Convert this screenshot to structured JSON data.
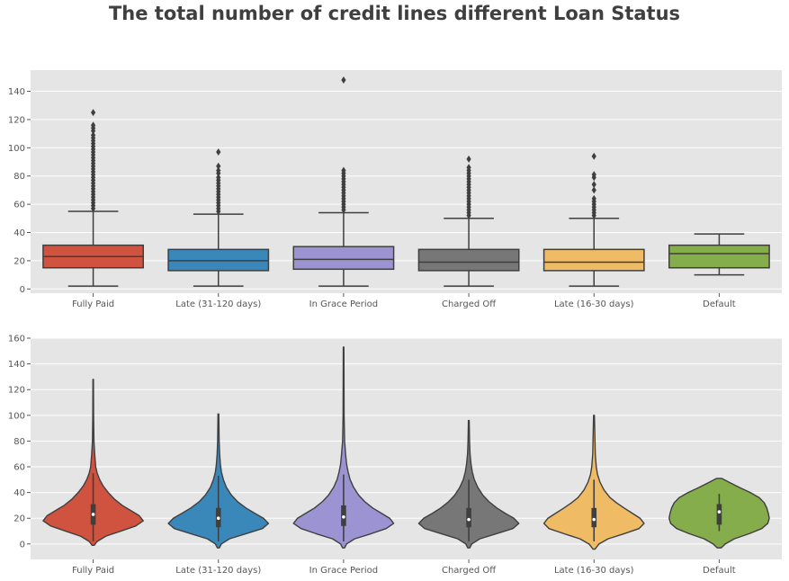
{
  "title": "The total number of credit lines different Loan Status",
  "chart_data": [
    {
      "type": "box",
      "categories": [
        "Fully Paid",
        "Late (31-120 days)",
        "In Grace Period",
        "Charged Off",
        "Late (16-30 days)",
        "Default"
      ],
      "colors": [
        "#d0533f",
        "#3a88b9",
        "#9b93d2",
        "#777777",
        "#f0bb65",
        "#86ad4b"
      ],
      "ylim": [
        -3,
        155
      ],
      "yticks": [
        0,
        20,
        40,
        60,
        80,
        100,
        120,
        140
      ],
      "grid": true,
      "boxes": [
        {
          "whisker_low": 2,
          "q1": 15,
          "median": 23,
          "q3": 31,
          "whisker_high": 55,
          "outliers": [
            57,
            59,
            61,
            63,
            65,
            67,
            69,
            71,
            73,
            75,
            77,
            79,
            81,
            83,
            85,
            87,
            89,
            91,
            93,
            95,
            97,
            99,
            101,
            103,
            105,
            107,
            109,
            112,
            114,
            116,
            125
          ]
        },
        {
          "whisker_low": 2,
          "q1": 13,
          "median": 20,
          "q3": 28,
          "whisker_high": 53,
          "outliers": [
            55,
            57,
            59,
            61,
            63,
            65,
            67,
            69,
            71,
            73,
            75,
            77,
            79,
            82,
            84,
            87,
            97
          ]
        },
        {
          "whisker_low": 2,
          "q1": 14,
          "median": 21,
          "q3": 30,
          "whisker_high": 54,
          "outliers": [
            56,
            58,
            60,
            62,
            64,
            66,
            68,
            70,
            72,
            74,
            76,
            78,
            80,
            82,
            84,
            148
          ]
        },
        {
          "whisker_low": 2,
          "q1": 13,
          "median": 19,
          "q3": 28,
          "whisker_high": 50,
          "outliers": [
            52,
            54,
            56,
            58,
            60,
            62,
            64,
            66,
            68,
            70,
            72,
            74,
            76,
            78,
            80,
            82,
            84,
            86,
            92
          ]
        },
        {
          "whisker_low": 2,
          "q1": 13,
          "median": 19,
          "q3": 28,
          "whisker_high": 50,
          "outliers": [
            52,
            54,
            56,
            58,
            60,
            62,
            64,
            70,
            74,
            79,
            81,
            94
          ]
        },
        {
          "whisker_low": 10,
          "q1": 15,
          "median": 25,
          "q3": 31,
          "whisker_high": 39,
          "outliers": []
        }
      ]
    },
    {
      "type": "violin",
      "categories": [
        "Fully Paid",
        "Late (31-120 days)",
        "In Grace Period",
        "Charged Off",
        "Late (16-30 days)",
        "Default"
      ],
      "colors": [
        "#d0533f",
        "#3a88b9",
        "#9b93d2",
        "#777777",
        "#f0bb65",
        "#86ad4b"
      ],
      "ylim": [
        -12,
        160
      ],
      "yticks": [
        0,
        20,
        40,
        60,
        80,
        100,
        120,
        140,
        160
      ],
      "grid": true,
      "violins": [
        {
          "ymin": -1,
          "ymax": 128,
          "profile": [
            [
              -1,
              0.02
            ],
            [
              2,
              0.08
            ],
            [
              6,
              0.25
            ],
            [
              10,
              0.55
            ],
            [
              14,
              0.85
            ],
            [
              18,
              1.0
            ],
            [
              22,
              0.92
            ],
            [
              26,
              0.75
            ],
            [
              30,
              0.58
            ],
            [
              35,
              0.42
            ],
            [
              40,
              0.3
            ],
            [
              45,
              0.2
            ],
            [
              50,
              0.13
            ],
            [
              55,
              0.08
            ],
            [
              60,
              0.05
            ],
            [
              70,
              0.03
            ],
            [
              80,
              0.015
            ],
            [
              100,
              0.008
            ],
            [
              128,
              0.005
            ]
          ],
          "q1": 15,
          "median": 23,
          "q3": 31,
          "whisker_low": 2,
          "whisker_high": 55
        },
        {
          "ymin": -3,
          "ymax": 101,
          "profile": [
            [
              -3,
              0.02
            ],
            [
              0,
              0.06
            ],
            [
              4,
              0.22
            ],
            [
              8,
              0.55
            ],
            [
              12,
              0.88
            ],
            [
              16,
              1.0
            ],
            [
              20,
              0.9
            ],
            [
              24,
              0.72
            ],
            [
              28,
              0.55
            ],
            [
              33,
              0.38
            ],
            [
              38,
              0.26
            ],
            [
              44,
              0.16
            ],
            [
              50,
              0.1
            ],
            [
              56,
              0.06
            ],
            [
              62,
              0.04
            ],
            [
              70,
              0.025
            ],
            [
              80,
              0.015
            ],
            [
              101,
              0.008
            ]
          ],
          "q1": 13,
          "median": 20,
          "q3": 28,
          "whisker_low": 2,
          "whisker_high": 53
        },
        {
          "ymin": -3,
          "ymax": 153,
          "profile": [
            [
              -3,
              0.02
            ],
            [
              0,
              0.06
            ],
            [
              4,
              0.22
            ],
            [
              8,
              0.55
            ],
            [
              12,
              0.85
            ],
            [
              16,
              1.0
            ],
            [
              20,
              0.92
            ],
            [
              24,
              0.75
            ],
            [
              28,
              0.58
            ],
            [
              33,
              0.42
            ],
            [
              38,
              0.3
            ],
            [
              44,
              0.2
            ],
            [
              50,
              0.13
            ],
            [
              56,
              0.09
            ],
            [
              62,
              0.06
            ],
            [
              70,
              0.04
            ],
            [
              80,
              0.02
            ],
            [
              100,
              0.01
            ],
            [
              153,
              0.006
            ]
          ],
          "q1": 14,
          "median": 21,
          "q3": 30,
          "whisker_low": 2,
          "whisker_high": 54
        },
        {
          "ymin": -3,
          "ymax": 96,
          "profile": [
            [
              -3,
              0.02
            ],
            [
              0,
              0.06
            ],
            [
              4,
              0.22
            ],
            [
              8,
              0.55
            ],
            [
              12,
              0.88
            ],
            [
              16,
              1.0
            ],
            [
              20,
              0.9
            ],
            [
              24,
              0.72
            ],
            [
              28,
              0.56
            ],
            [
              33,
              0.4
            ],
            [
              38,
              0.28
            ],
            [
              44,
              0.18
            ],
            [
              50,
              0.11
            ],
            [
              56,
              0.07
            ],
            [
              62,
              0.045
            ],
            [
              70,
              0.025
            ],
            [
              80,
              0.015
            ],
            [
              96,
              0.008
            ]
          ],
          "q1": 13,
          "median": 19,
          "q3": 28,
          "whisker_low": 2,
          "whisker_high": 50
        },
        {
          "ymin": -4,
          "ymax": 100,
          "profile": [
            [
              -4,
              0.02
            ],
            [
              0,
              0.1
            ],
            [
              4,
              0.28
            ],
            [
              8,
              0.6
            ],
            [
              12,
              0.9
            ],
            [
              16,
              1.0
            ],
            [
              20,
              0.92
            ],
            [
              24,
              0.76
            ],
            [
              28,
              0.6
            ],
            [
              32,
              0.45
            ],
            [
              36,
              0.32
            ],
            [
              42,
              0.2
            ],
            [
              48,
              0.12
            ],
            [
              54,
              0.07
            ],
            [
              60,
              0.045
            ],
            [
              70,
              0.025
            ],
            [
              80,
              0.02
            ],
            [
              100,
              0.008
            ]
          ],
          "q1": 13,
          "median": 19,
          "q3": 28,
          "whisker_low": 2,
          "whisker_high": 50
        },
        {
          "ymin": -3,
          "ymax": 51,
          "profile": [
            [
              -3,
              0.04
            ],
            [
              0,
              0.12
            ],
            [
              4,
              0.3
            ],
            [
              8,
              0.6
            ],
            [
              12,
              0.85
            ],
            [
              16,
              0.97
            ],
            [
              20,
              1.0
            ],
            [
              24,
              0.98
            ],
            [
              28,
              0.95
            ],
            [
              32,
              0.9
            ],
            [
              36,
              0.8
            ],
            [
              40,
              0.62
            ],
            [
              44,
              0.4
            ],
            [
              48,
              0.2
            ],
            [
              51,
              0.05
            ]
          ],
          "q1": 15,
          "median": 25,
          "q3": 31,
          "whisker_low": 10,
          "whisker_high": 39
        }
      ]
    }
  ]
}
